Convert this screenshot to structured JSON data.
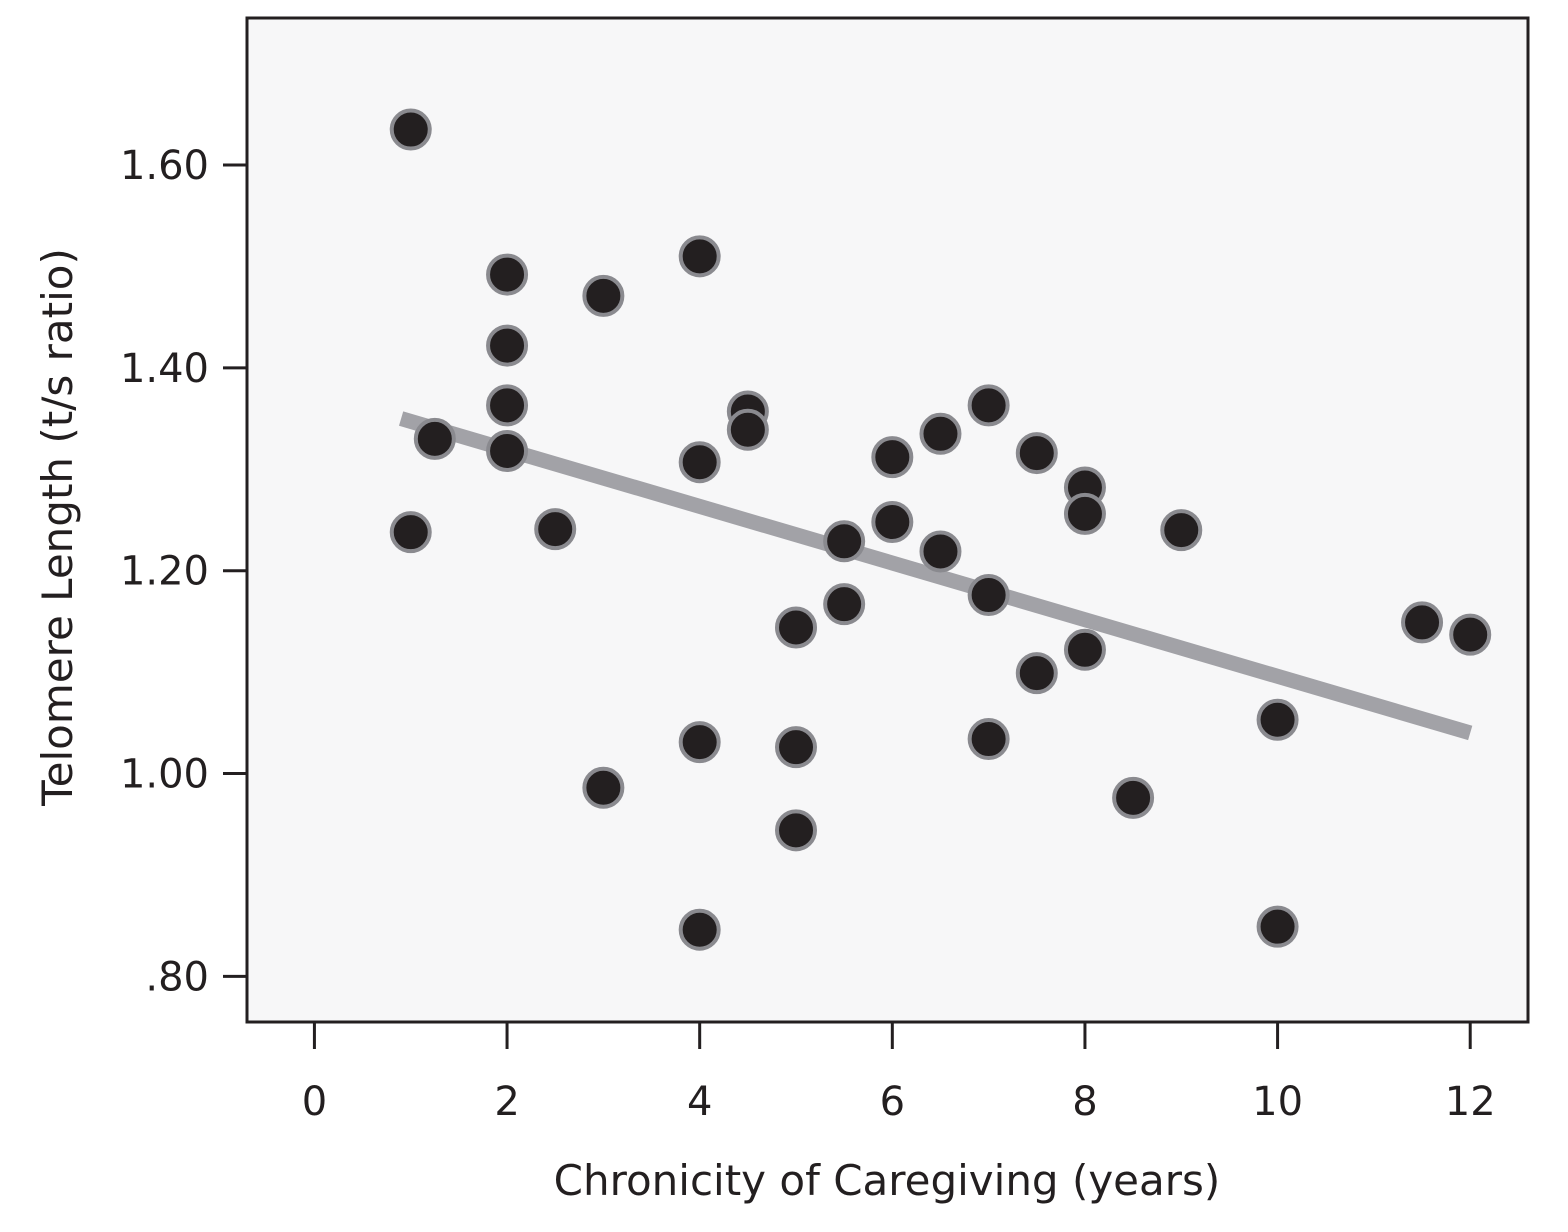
{
  "chart_data": {
    "type": "scatter",
    "title": "",
    "xlabel": "Chronicity of Caregiving (years)",
    "ylabel": "Telomere Length (t/s ratio)",
    "xlim": [
      -0.7,
      12.6
    ],
    "ylim": [
      0.755,
      1.745
    ],
    "x_ticks": [
      0,
      2,
      4,
      6,
      8,
      10,
      12
    ],
    "x_tick_labels": [
      "0",
      "2",
      "4",
      "6",
      "8",
      "10",
      "12"
    ],
    "y_ticks": [
      0.8,
      1.0,
      1.2,
      1.4,
      1.6
    ],
    "y_tick_labels": [
      ".80",
      "1.00",
      "1.20",
      "1.40",
      "1.60"
    ],
    "grid": false,
    "legend": "none",
    "colors": {
      "background": "#f7f7f8",
      "frame": "#231f20",
      "point_fill": "#231f20",
      "point_stroke": "#8a8a8f",
      "trend_line": "#a2a2a7"
    },
    "points": [
      {
        "x": 1.0,
        "y": 1.635
      },
      {
        "x": 1.0,
        "y": 1.238
      },
      {
        "x": 1.25,
        "y": 1.33
      },
      {
        "x": 2.0,
        "y": 1.492
      },
      {
        "x": 2.0,
        "y": 1.422
      },
      {
        "x": 2.0,
        "y": 1.363
      },
      {
        "x": 2.0,
        "y": 1.318
      },
      {
        "x": 2.5,
        "y": 1.241
      },
      {
        "x": 3.0,
        "y": 1.471
      },
      {
        "x": 3.0,
        "y": 0.986
      },
      {
        "x": 4.0,
        "y": 1.51
      },
      {
        "x": 4.0,
        "y": 1.307
      },
      {
        "x": 4.0,
        "y": 1.031
      },
      {
        "x": 4.0,
        "y": 0.846
      },
      {
        "x": 4.5,
        "y": 1.357
      },
      {
        "x": 4.5,
        "y": 1.339
      },
      {
        "x": 5.0,
        "y": 1.144
      },
      {
        "x": 5.0,
        "y": 1.026
      },
      {
        "x": 5.0,
        "y": 0.944
      },
      {
        "x": 5.5,
        "y": 1.229
      },
      {
        "x": 5.5,
        "y": 1.167
      },
      {
        "x": 6.0,
        "y": 1.312
      },
      {
        "x": 6.0,
        "y": 1.248
      },
      {
        "x": 6.5,
        "y": 1.335
      },
      {
        "x": 6.5,
        "y": 1.219
      },
      {
        "x": 7.0,
        "y": 1.363
      },
      {
        "x": 7.0,
        "y": 1.176
      },
      {
        "x": 7.0,
        "y": 1.034
      },
      {
        "x": 7.5,
        "y": 1.316
      },
      {
        "x": 7.5,
        "y": 1.099
      },
      {
        "x": 8.0,
        "y": 1.282
      },
      {
        "x": 8.0,
        "y": 1.256
      },
      {
        "x": 8.0,
        "y": 1.122
      },
      {
        "x": 8.5,
        "y": 0.976
      },
      {
        "x": 9.0,
        "y": 1.24
      },
      {
        "x": 10.0,
        "y": 1.053
      },
      {
        "x": 10.0,
        "y": 0.849
      },
      {
        "x": 11.5,
        "y": 1.149
      },
      {
        "x": 12.0,
        "y": 1.137
      }
    ],
    "trend_line": {
      "x": [
        0.9,
        12.0
      ],
      "y": [
        1.35,
        1.04
      ]
    }
  }
}
